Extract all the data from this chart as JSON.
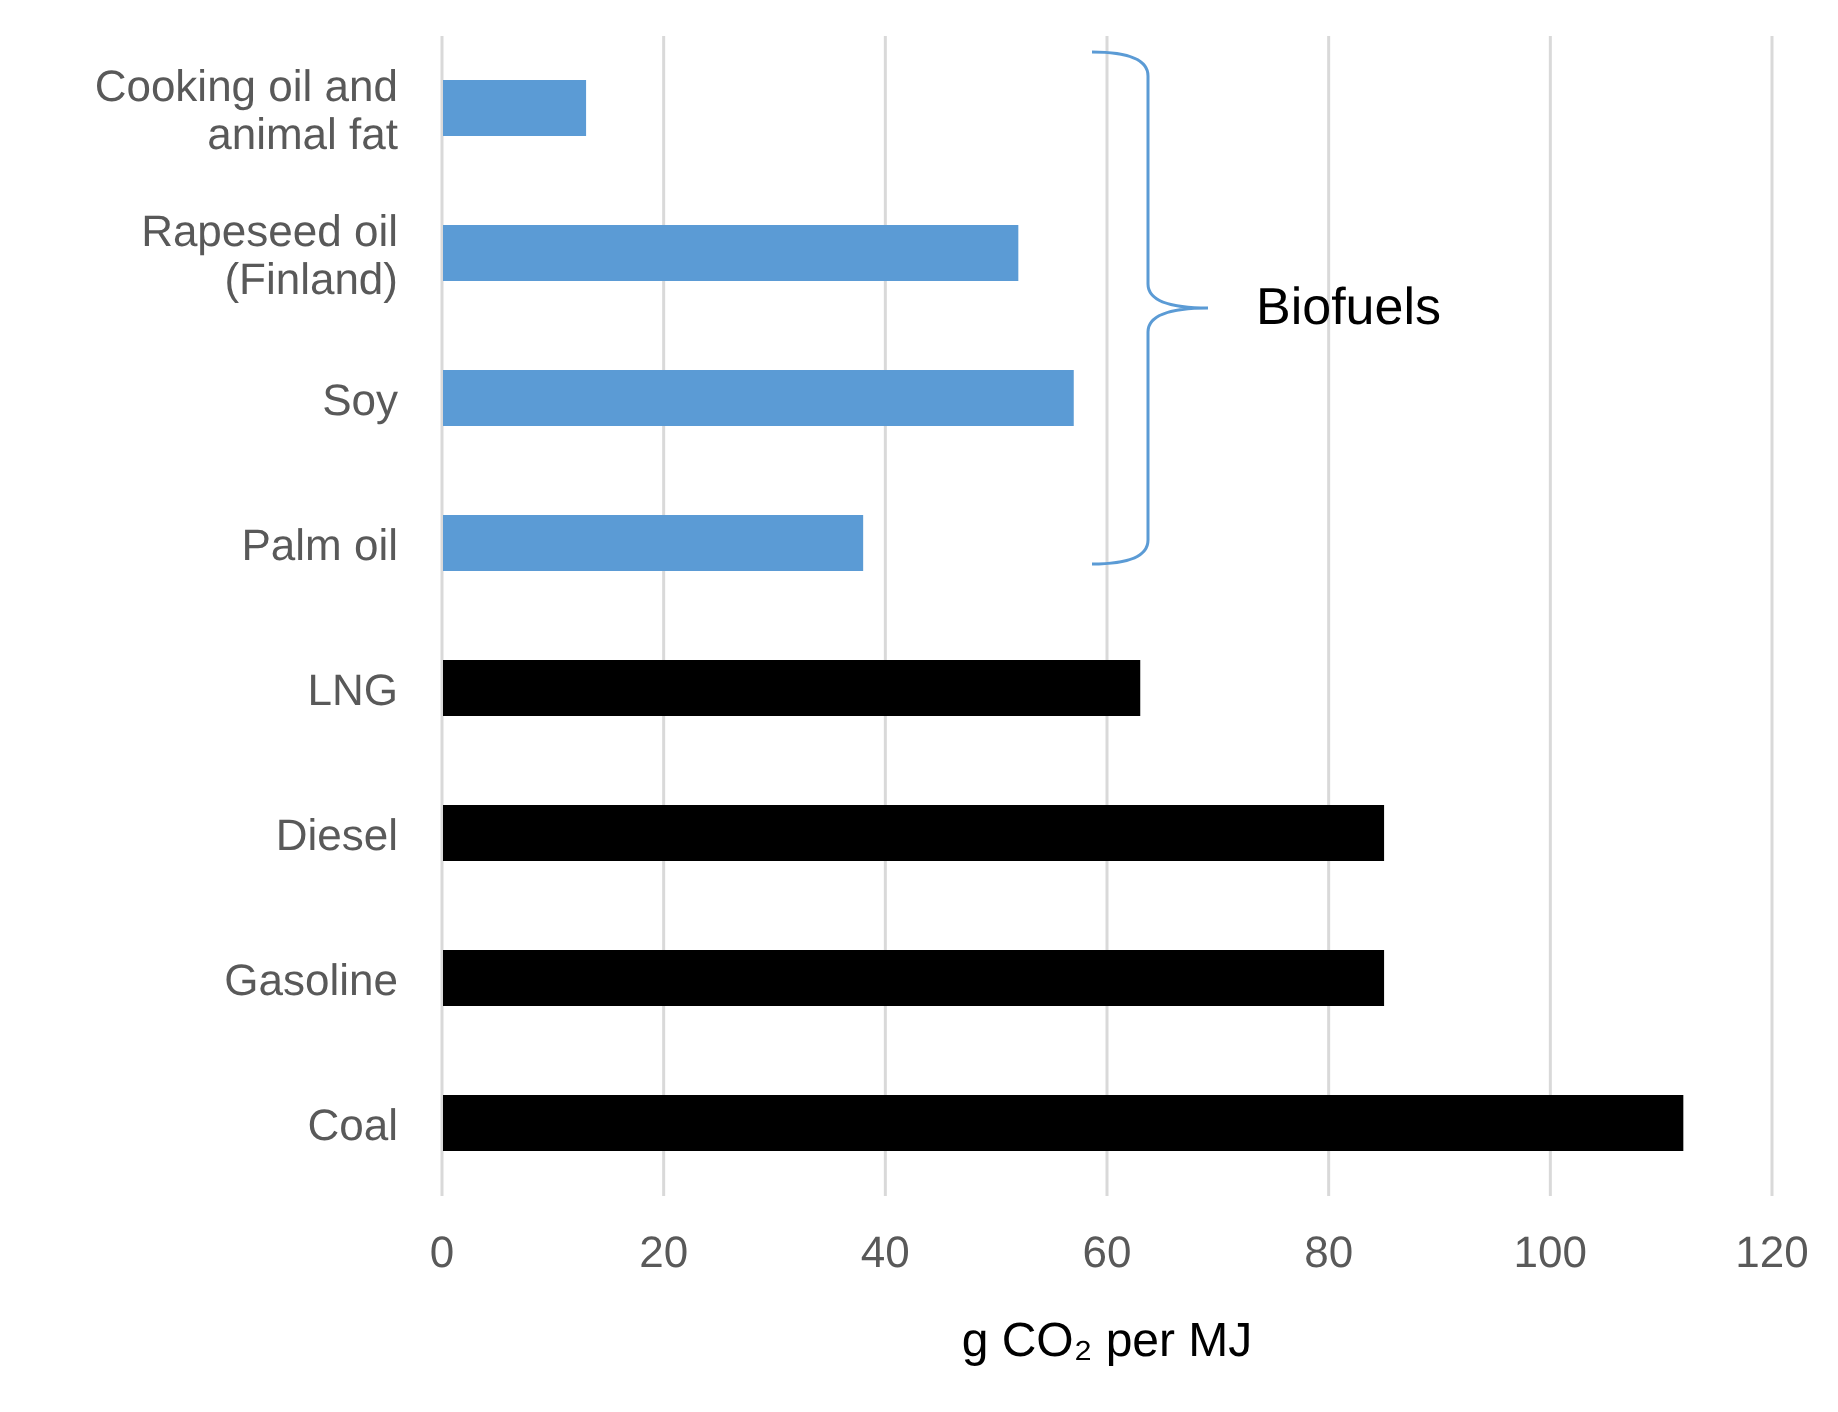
{
  "chart_data": {
    "type": "bar",
    "orientation": "horizontal",
    "xlabel": "g CO₂ per MJ",
    "categories": [
      "Cooking oil and animal fat",
      "Rapeseed oil (Finland)",
      "Soy",
      "Palm oil",
      "LNG",
      "Diesel",
      "Gasoline",
      "Coal"
    ],
    "values": [
      13,
      52,
      57,
      38,
      63,
      85,
      85,
      112
    ],
    "colors": [
      "#5b9bd5",
      "#5b9bd5",
      "#5b9bd5",
      "#5b9bd5",
      "#000000",
      "#000000",
      "#000000",
      "#000000"
    ],
    "xlim": [
      0,
      120
    ],
    "xticks": [
      0,
      20,
      40,
      60,
      80,
      100,
      120
    ],
    "grid": "x",
    "legend": false,
    "annotations": [
      "Biofuels"
    ]
  }
}
